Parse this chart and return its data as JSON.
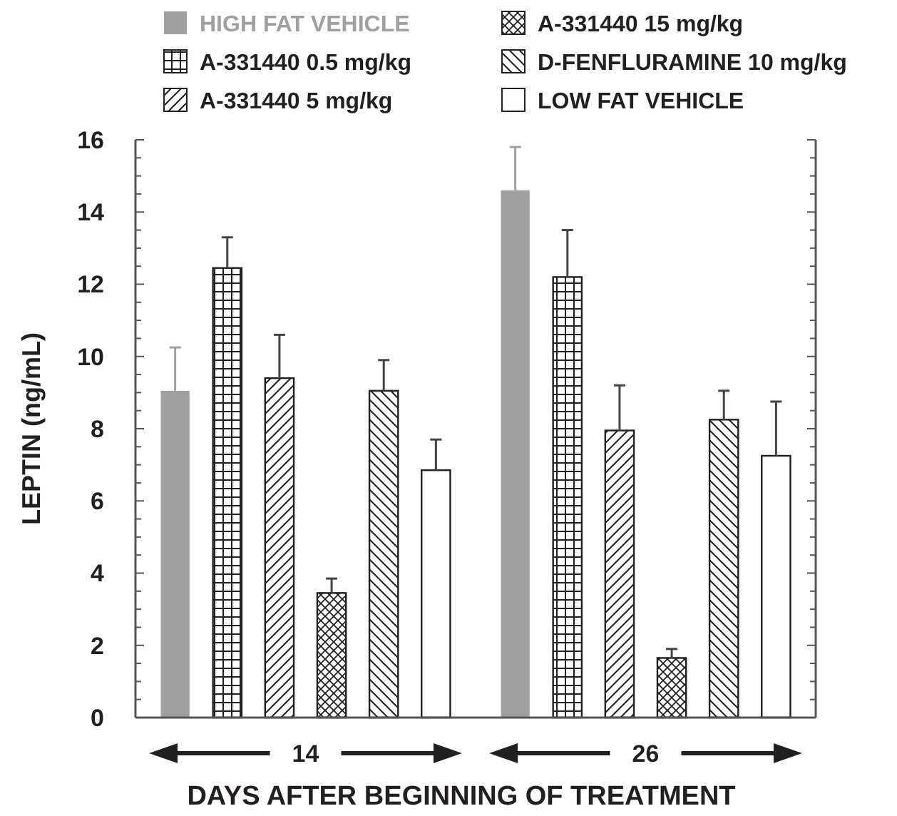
{
  "chart_data": {
    "type": "bar",
    "xlabel": "DAYS AFTER BEGINNING OF TREATMENT",
    "ylabel": "LEPTIN (ng/mL)",
    "categories": [
      "14",
      "26"
    ],
    "series": [
      {
        "name": "HIGH FAT VEHICLE",
        "color": "#a0a0a0",
        "values": [
          9.05,
          14.6
        ],
        "errors": [
          1.2,
          1.2
        ]
      },
      {
        "name": "A-331440 0.5 mg/kg",
        "color": "#231f20",
        "values": [
          12.45,
          12.2
        ],
        "errors": [
          0.85,
          1.3
        ]
      },
      {
        "name": "A-331440 5 mg/kg",
        "color": "#231f20",
        "values": [
          9.4,
          7.95
        ],
        "errors": [
          1.2,
          1.25
        ]
      },
      {
        "name": "A-331440 15 mg/kg",
        "color": "#231f20",
        "values": [
          3.45,
          1.65
        ],
        "errors": [
          0.4,
          0.25
        ]
      },
      {
        "name": "D-FENFLURAMINE 10 mg/kg",
        "color": "#231f20",
        "values": [
          9.05,
          8.25
        ],
        "errors": [
          0.85,
          0.8
        ]
      },
      {
        "name": "LOW FAT VEHICLE",
        "color": "#231f20",
        "values": [
          6.85,
          7.25
        ],
        "errors": [
          0.85,
          1.5
        ]
      }
    ],
    "ylim": [
      0,
      16
    ],
    "yticks": [
      0,
      {
        "value": 0.5,
        "label": null
      },
      {
        "value": 1,
        "label": null
      },
      {
        "value": 1.5,
        "label": null
      },
      2,
      {
        "value": 2.5,
        "label": null
      },
      {
        "value": 3,
        "label": null
      },
      {
        "value": 3.5,
        "label": null
      },
      4,
      {
        "value": 4.5,
        "label": null
      },
      {
        "value": 5,
        "label": null
      },
      {
        "value": 5.5,
        "label": null
      },
      6,
      {
        "value": 6.5,
        "label": null
      },
      {
        "value": 7,
        "label": null
      },
      {
        "value": 7.5,
        "label": null
      },
      8,
      {
        "value": 8.5,
        "label": null
      },
      {
        "value": 9,
        "label": null
      },
      {
        "value": 9.5,
        "label": null
      },
      10,
      {
        "value": 10.5,
        "label": null
      },
      {
        "value": 11,
        "label": null
      },
      {
        "value": 11.5,
        "label": null
      },
      12,
      {
        "value": 12.5,
        "label": null
      },
      {
        "value": 13,
        "label": null
      },
      {
        "value": 13.5,
        "label": null
      },
      14,
      {
        "value": 14.5,
        "label": null
      },
      {
        "value": 15,
        "label": null
      },
      {
        "value": 15.5,
        "label": null
      },
      16
    ],
    "grid": false,
    "legend": "top"
  }
}
